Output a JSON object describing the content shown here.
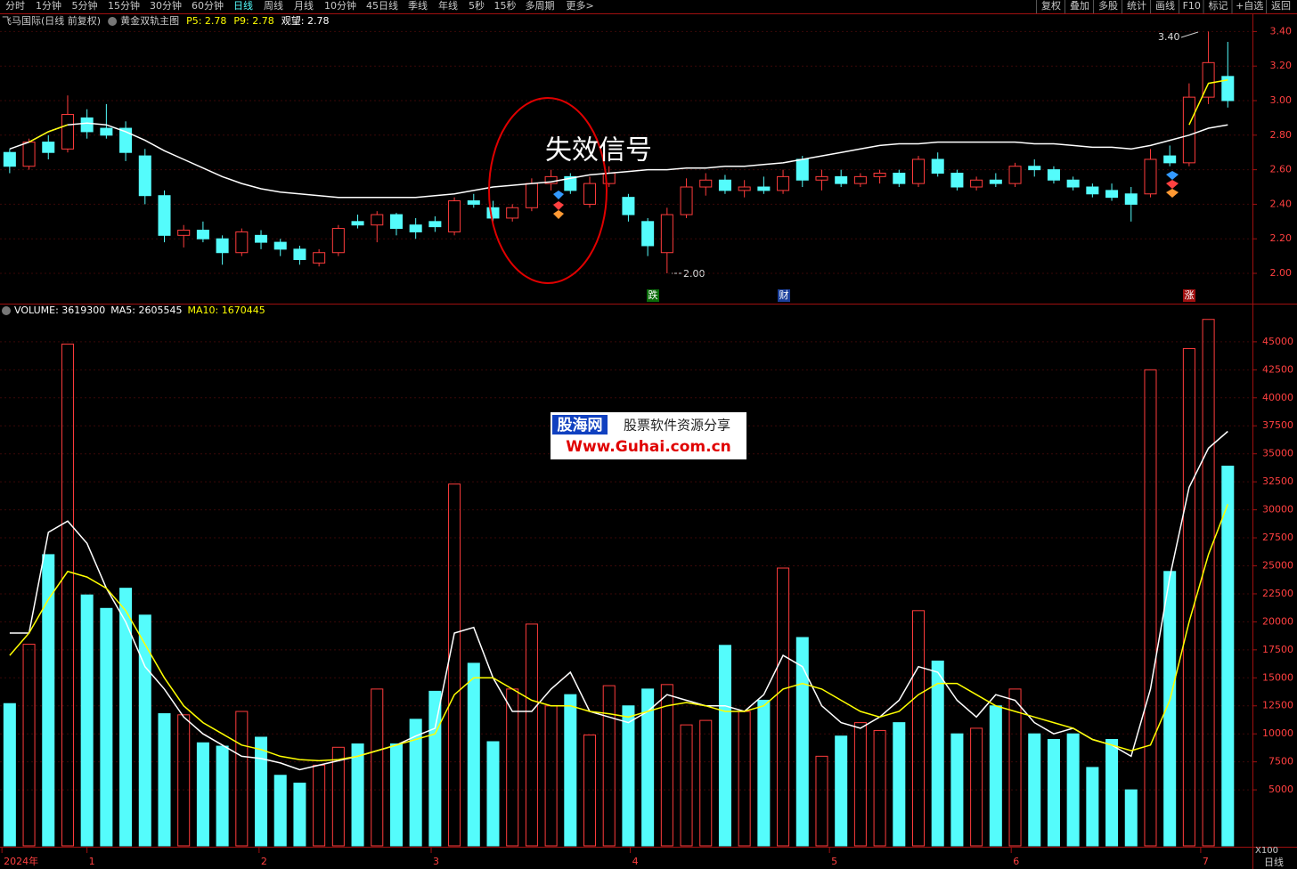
{
  "toolbar": {
    "left": [
      "分时",
      "1分钟",
      "5分钟",
      "15分钟",
      "30分钟",
      "60分钟",
      "日线",
      "周线",
      "月线",
      "10分钟",
      "45日线",
      "季线",
      "年线",
      "5秒",
      "15秒",
      "多周期",
      "更多>"
    ],
    "active": "日线",
    "right": [
      "复权",
      "叠加",
      "多股",
      "统计",
      "画线",
      "F10",
      "标记",
      "+自选",
      "返回"
    ]
  },
  "watermark": {
    "logo": "股海网",
    "slogan": "股票软件资源分享",
    "url": "Www.Guhai.com.cn"
  },
  "chart_data": {
    "type": "candlestick",
    "title": "飞马国际(日线 前复权)",
    "indicator_name": "黄金双轨主图",
    "indicator_values": [
      {
        "text": "P5: 2.78",
        "color": "#ffff00"
      },
      {
        "text": "P9: 2.78",
        "color": "#ffff00"
      },
      {
        "text": "观望: 2.78",
        "color": "#ffffff"
      }
    ],
    "annotations": {
      "signal": "失效信号",
      "high": "3.40",
      "low": "2.00",
      "events": [
        "跌",
        "财",
        "涨"
      ]
    },
    "up_color": "#ff3c3c",
    "down_color": "#54fcfc",
    "grid": true,
    "xlim": [
      -0.5,
      64
    ],
    "xticks": [
      {
        "value": -0.4,
        "label": "2024年"
      },
      {
        "value": 4.0,
        "label": "1"
      },
      {
        "value": 12.9,
        "label": "2"
      },
      {
        "value": 21.8,
        "label": "3"
      },
      {
        "value": 32.1,
        "label": "4"
      },
      {
        "value": 42.4,
        "label": "5"
      },
      {
        "value": 51.8,
        "label": "6"
      },
      {
        "value": 61.6,
        "label": "7"
      }
    ],
    "ylim": [
      1.83,
      3.5
    ],
    "yticks": [
      {
        "value": 2,
        "label": "2.00"
      },
      {
        "value": 2.2,
        "label": "2.20"
      },
      {
        "value": 2.4,
        "label": "2.40"
      },
      {
        "value": 2.6,
        "label": "2.60"
      },
      {
        "value": 2.8,
        "label": "2.80"
      },
      {
        "value": 3,
        "label": "3.00"
      },
      {
        "value": 3.2,
        "label": "3.20"
      },
      {
        "value": 3.4,
        "label": "3.40"
      }
    ],
    "ohlc": [
      [
        2.7,
        2.72,
        2.58,
        2.62
      ],
      [
        2.62,
        2.78,
        2.6,
        2.76
      ],
      [
        2.76,
        2.8,
        2.66,
        2.7
      ],
      [
        2.72,
        3.03,
        2.7,
        2.92
      ],
      [
        2.9,
        2.95,
        2.78,
        2.82
      ],
      [
        2.84,
        2.98,
        2.78,
        2.8
      ],
      [
        2.84,
        2.88,
        2.65,
        2.7
      ],
      [
        2.68,
        2.72,
        2.4,
        2.45
      ],
      [
        2.45,
        2.48,
        2.18,
        2.22
      ],
      [
        2.22,
        2.28,
        2.15,
        2.25
      ],
      [
        2.25,
        2.3,
        2.18,
        2.2
      ],
      [
        2.2,
        2.22,
        2.05,
        2.12
      ],
      [
        2.12,
        2.26,
        2.1,
        2.24
      ],
      [
        2.22,
        2.25,
        2.14,
        2.18
      ],
      [
        2.18,
        2.2,
        2.1,
        2.14
      ],
      [
        2.14,
        2.16,
        2.05,
        2.08
      ],
      [
        2.06,
        2.14,
        2.04,
        2.12
      ],
      [
        2.12,
        2.28,
        2.1,
        2.26
      ],
      [
        2.3,
        2.34,
        2.26,
        2.28
      ],
      [
        2.28,
        2.36,
        2.18,
        2.34
      ],
      [
        2.34,
        2.35,
        2.22,
        2.26
      ],
      [
        2.28,
        2.32,
        2.2,
        2.24
      ],
      [
        2.3,
        2.33,
        2.24,
        2.27
      ],
      [
        2.24,
        2.44,
        2.22,
        2.42
      ],
      [
        2.42,
        2.46,
        2.38,
        2.4
      ],
      [
        2.38,
        2.42,
        2.3,
        2.32
      ],
      [
        2.32,
        2.4,
        2.3,
        2.38
      ],
      [
        2.38,
        2.55,
        2.36,
        2.52
      ],
      [
        2.52,
        2.6,
        2.48,
        2.56
      ],
      [
        2.56,
        2.58,
        2.46,
        2.48
      ],
      [
        2.4,
        2.56,
        2.38,
        2.52
      ],
      [
        2.52,
        2.62,
        2.5,
        2.58
      ],
      [
        2.44,
        2.46,
        2.3,
        2.34
      ],
      [
        2.3,
        2.32,
        2.1,
        2.16
      ],
      [
        2.12,
        2.38,
        2.0,
        2.34
      ],
      [
        2.34,
        2.55,
        2.32,
        2.5
      ],
      [
        2.5,
        2.58,
        2.45,
        2.54
      ],
      [
        2.54,
        2.57,
        2.46,
        2.48
      ],
      [
        2.48,
        2.54,
        2.44,
        2.5
      ],
      [
        2.5,
        2.56,
        2.46,
        2.48
      ],
      [
        2.48,
        2.6,
        2.46,
        2.56
      ],
      [
        2.66,
        2.68,
        2.5,
        2.54
      ],
      [
        2.54,
        2.6,
        2.48,
        2.56
      ],
      [
        2.56,
        2.6,
        2.5,
        2.52
      ],
      [
        2.52,
        2.58,
        2.5,
        2.56
      ],
      [
        2.56,
        2.6,
        2.52,
        2.58
      ],
      [
        2.58,
        2.6,
        2.5,
        2.52
      ],
      [
        2.52,
        2.68,
        2.5,
        2.66
      ],
      [
        2.66,
        2.7,
        2.56,
        2.58
      ],
      [
        2.58,
        2.6,
        2.48,
        2.5
      ],
      [
        2.5,
        2.56,
        2.48,
        2.54
      ],
      [
        2.54,
        2.58,
        2.5,
        2.52
      ],
      [
        2.52,
        2.64,
        2.5,
        2.62
      ],
      [
        2.62,
        2.66,
        2.56,
        2.6
      ],
      [
        2.6,
        2.62,
        2.52,
        2.54
      ],
      [
        2.54,
        2.56,
        2.48,
        2.5
      ],
      [
        2.5,
        2.52,
        2.44,
        2.46
      ],
      [
        2.48,
        2.52,
        2.42,
        2.44
      ],
      [
        2.46,
        2.5,
        2.3,
        2.4
      ],
      [
        2.46,
        2.72,
        2.44,
        2.66
      ],
      [
        2.68,
        2.74,
        2.62,
        2.64
      ],
      [
        2.64,
        3.1,
        2.62,
        3.02
      ],
      [
        3.02,
        3.4,
        2.98,
        3.22
      ],
      [
        3.14,
        3.34,
        2.96,
        3.0
      ]
    ],
    "overlays": [
      {
        "color": "#ffffff",
        "values": [
          2.72,
          2.76,
          2.82,
          2.86,
          2.87,
          2.86,
          2.82,
          2.77,
          2.71,
          2.66,
          2.61,
          2.56,
          2.52,
          2.49,
          2.47,
          2.46,
          2.45,
          2.44,
          2.44,
          2.44,
          2.44,
          2.44,
          2.45,
          2.46,
          2.48,
          2.5,
          2.51,
          2.52,
          2.53,
          2.55,
          2.57,
          2.58,
          2.59,
          2.6,
          2.6,
          2.61,
          2.61,
          2.62,
          2.62,
          2.63,
          2.64,
          2.66,
          2.68,
          2.7,
          2.72,
          2.74,
          2.75,
          2.75,
          2.76,
          2.76,
          2.76,
          2.76,
          2.76,
          2.75,
          2.75,
          2.74,
          2.73,
          2.73,
          2.72,
          2.74,
          2.77,
          2.8,
          2.84,
          2.86
        ]
      },
      {
        "color": "#ffff00",
        "values": [
          null,
          2.76,
          2.82,
          2.86,
          null,
          null,
          null,
          null,
          null,
          null,
          null,
          null,
          null,
          null,
          null,
          null,
          null,
          null,
          null,
          null,
          null,
          null,
          null,
          null,
          null,
          null,
          null,
          null,
          null,
          null,
          null,
          null,
          null,
          null,
          null,
          null,
          null,
          null,
          null,
          null,
          null,
          null,
          null,
          null,
          null,
          null,
          null,
          null,
          null,
          null,
          null,
          null,
          null,
          null,
          null,
          null,
          null,
          null,
          null,
          null,
          null,
          2.86,
          3.1,
          3.12
        ]
      }
    ],
    "volume": {
      "header": [
        {
          "text": "VOLUME: 3619300",
          "color": "#ffffff"
        },
        {
          "text": "MA5: 2605545",
          "color": "#ffffff"
        },
        {
          "text": "MA10: 1670445",
          "color": "#ffff00"
        }
      ],
      "unit": "X100",
      "period": "日线",
      "ylim": [
        0,
        48330
      ],
      "yticks": [
        5000,
        7500,
        10000,
        12500,
        15000,
        17500,
        20000,
        22500,
        25000,
        27500,
        30000,
        32500,
        35000,
        37500,
        40000,
        42500,
        45000
      ],
      "values": [
        12700,
        18000,
        26000,
        44800,
        22400,
        21200,
        23000,
        20600,
        11800,
        11700,
        9200,
        8900,
        12000,
        9700,
        6300,
        5600,
        7200,
        8800,
        9100,
        14000,
        9100,
        11300,
        13800,
        32300,
        16300,
        9300,
        14000,
        19800,
        12500,
        13500,
        9900,
        14300,
        12500,
        14000,
        14400,
        10800,
        11200,
        17900,
        12000,
        13000,
        24800,
        18600,
        8000,
        9800,
        11000,
        10300,
        11000,
        21000,
        16500,
        10000,
        10500,
        12500,
        14000,
        10000,
        9500,
        10000,
        7000,
        9500,
        5000,
        42500,
        24500,
        44400,
        47000,
        33900
      ],
      "overlays": [
        {
          "color": "#ffffff",
          "values": [
            19000,
            19000,
            28000,
            29000,
            27000,
            23000,
            20000,
            16000,
            14000,
            11500,
            10000,
            9000,
            8000,
            7800,
            7400,
            6800,
            7200,
            7600,
            8000,
            8500,
            9000,
            9800,
            10500,
            19000,
            19500,
            15000,
            12000,
            12000,
            14000,
            15500,
            12000,
            11500,
            11000,
            12000,
            13500,
            13000,
            12500,
            12500,
            12000,
            13500,
            17000,
            16000,
            12500,
            11000,
            10500,
            11500,
            13000,
            16000,
            15500,
            13000,
            11500,
            13500,
            13000,
            11000,
            10000,
            10500,
            9500,
            9000,
            8000,
            14000,
            24000,
            32000,
            35500,
            37000
          ]
        },
        {
          "color": "#ffff00",
          "values": [
            17000,
            19000,
            22000,
            24500,
            24000,
            23000,
            21000,
            18000,
            15000,
            12500,
            11000,
            10000,
            9000,
            8600,
            8000,
            7700,
            7600,
            7700,
            8000,
            8500,
            9000,
            9500,
            10000,
            13500,
            15000,
            15000,
            14000,
            13000,
            12500,
            12500,
            12000,
            11800,
            11500,
            12000,
            12500,
            12800,
            12500,
            12000,
            12000,
            12500,
            14000,
            14500,
            14000,
            13000,
            12000,
            11500,
            12000,
            13500,
            14500,
            14500,
            13500,
            12500,
            12000,
            11500,
            11000,
            10500,
            9500,
            9000,
            8500,
            9000,
            13000,
            20000,
            26000,
            30500
          ]
        }
      ]
    }
  }
}
